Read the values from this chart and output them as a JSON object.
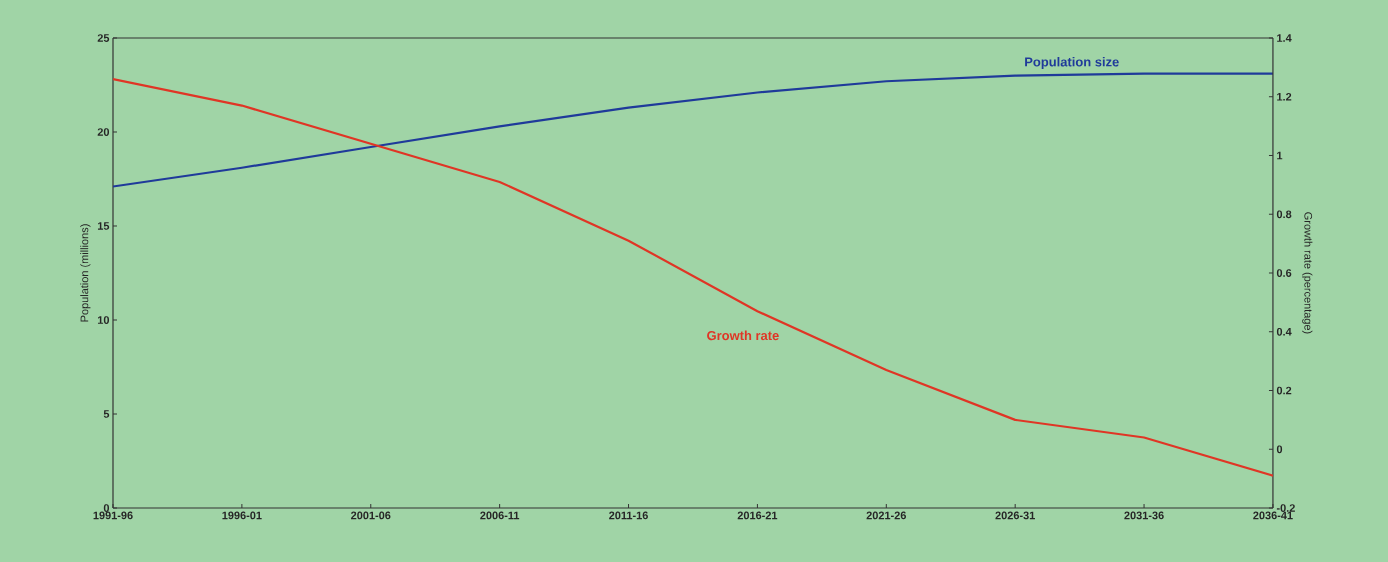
{
  "chart_data": {
    "type": "line",
    "categories": [
      "1991-96",
      "1996-01",
      "2001-06",
      "2006-11",
      "2011-16",
      "2016-21",
      "2021-26",
      "2026-31",
      "2031-36",
      "2036-41"
    ],
    "ylabel": "Population (millions)",
    "y2label": "Growth rate (percentage)",
    "ylim": [
      0,
      25
    ],
    "yticks": [
      0,
      5,
      10,
      15,
      20,
      25
    ],
    "y2lim": [
      -0.2,
      1.4
    ],
    "y2ticks": [
      -0.2,
      0,
      0.2,
      0.4,
      0.6,
      0.8,
      1,
      1.2,
      1.4
    ],
    "grid": false,
    "legend": false,
    "marker": "none",
    "line_style": "solid",
    "series": [
      {
        "name": "Population size",
        "color": "#1f3a9a",
        "values": [
          17.1,
          18.1,
          19.2,
          20.3,
          21.3,
          22.1,
          22.7,
          23.0,
          23.1,
          23.1
        ]
      },
      {
        "name": "Growth rate",
        "color": "#e03525",
        "axis": "y2",
        "values": [
          1.26,
          1.17,
          1.04,
          0.91,
          0.71,
          0.47,
          0.27,
          0.1,
          0.04,
          -0.09
        ]
      }
    ]
  }
}
